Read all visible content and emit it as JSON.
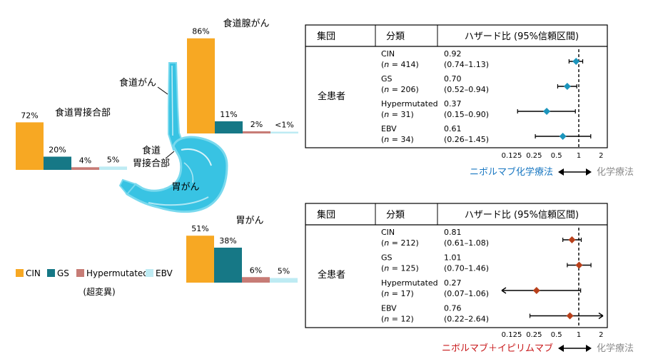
{
  "colors": {
    "CIN": "#F7A823",
    "GS": "#167886",
    "Hypermutated": "#C77C76",
    "EBV": "#BEEBF3",
    "stomach": "#38C3E3",
    "stomach_stroke": "#79D9EE",
    "marker_top": "#1C95BC",
    "marker_bottom": "#B8401B",
    "label_top": "#1A78C2",
    "label_bottom": "#C8191B",
    "chemo": "#8C8C8C"
  },
  "region_titles": {
    "eac": "食道腺がん",
    "esoph": "食道がん",
    "gej": "食道胃接合部",
    "gej_organ": [
      "食道",
      "胃接合部"
    ],
    "stomach_organ": "胃がん",
    "gastric": "胃がん"
  },
  "bar_groups": [
    {
      "id": "gej",
      "values": [
        72,
        20,
        4,
        5
      ],
      "labels": [
        "72%",
        "20%",
        "4%",
        "5%"
      ]
    },
    {
      "id": "eac",
      "values": [
        86,
        11,
        2,
        1
      ],
      "labels": [
        "86%",
        "11%",
        "2%",
        "<1%"
      ]
    },
    {
      "id": "gastric",
      "values": [
        51,
        38,
        6,
        5
      ],
      "labels": [
        "51%",
        "38%",
        "6%",
        "5%"
      ]
    }
  ],
  "legend": {
    "items": [
      {
        "key": "CIN",
        "label": "CIN"
      },
      {
        "key": "GS",
        "label": "GS"
      },
      {
        "key": "Hypermutated",
        "label": "Hypermutated"
      },
      {
        "key": "EBV",
        "label": "EBV"
      }
    ],
    "note": "(超変異)"
  },
  "forest_plots": [
    {
      "headers": [
        "集団",
        "分類",
        "ハザード比 (95%信頼区間)"
      ],
      "population": "全患者",
      "marker": "marker_top",
      "rows": [
        {
          "cls": "CIN",
          "n": "= 414)",
          "hr": "0.92",
          "ci": "(0.74–1.13)",
          "est": 0.92,
          "lo": 0.74,
          "hi": 1.13,
          "arrow_left": false,
          "arrow_right": false
        },
        {
          "cls": "GS",
          "n": "= 206)",
          "hr": "0.70",
          "ci": "(0.52–0.94)",
          "est": 0.7,
          "lo": 0.52,
          "hi": 0.94,
          "arrow_left": false,
          "arrow_right": false
        },
        {
          "cls": "Hypermutated",
          "n": "= 31)",
          "hr": "0.37",
          "ci": "(0.15–0.90)",
          "est": 0.37,
          "lo": 0.15,
          "hi": 0.9,
          "arrow_left": false,
          "arrow_right": false
        },
        {
          "cls": "EBV",
          "n": "= 34)",
          "hr": "0.61",
          "ci": "(0.26–1.45)",
          "est": 0.61,
          "lo": 0.26,
          "hi": 1.45,
          "arrow_left": false,
          "arrow_right": false
        }
      ],
      "ticks": [
        0.125,
        0.25,
        0.5,
        1,
        2
      ],
      "tick_labels": [
        "0.125",
        "0.25",
        "0.5",
        "1",
        "2"
      ],
      "favors_left": "ニボルマブ化学療法",
      "favors_left_color": "label_top",
      "favors_right": "化学療法"
    },
    {
      "headers": [
        "集団",
        "分類",
        "ハザード比 (95%信頼区間)"
      ],
      "population": "全患者",
      "marker": "marker_bottom",
      "rows": [
        {
          "cls": "CIN",
          "n": "= 212)",
          "hr": "0.81",
          "ci": "(0.61–1.08)",
          "est": 0.81,
          "lo": 0.61,
          "hi": 1.08,
          "arrow_left": false,
          "arrow_right": false
        },
        {
          "cls": "GS",
          "n": "= 125)",
          "hr": "1.01",
          "ci": "(0.70–1.46)",
          "est": 1.01,
          "lo": 0.7,
          "hi": 1.46,
          "arrow_left": false,
          "arrow_right": false
        },
        {
          "cls": "Hypermutated",
          "n": "= 17)",
          "hr": "0.27",
          "ci": "(0.07–1.06)",
          "est": 0.27,
          "lo": 0.07,
          "hi": 1.06,
          "arrow_left": true,
          "arrow_right": false
        },
        {
          "cls": "EBV",
          "n": "= 12)",
          "hr": "0.76",
          "ci": "(0.22–2.64)",
          "est": 0.76,
          "lo": 0.22,
          "hi": 2.64,
          "arrow_left": false,
          "arrow_right": true
        }
      ],
      "ticks": [
        0.125,
        0.25,
        0.5,
        1,
        2
      ],
      "tick_labels": [
        "0.125",
        "0.25",
        "0.5",
        "1",
        "2"
      ],
      "favors_left": "ニボルマブ＋イピリムマブ",
      "favors_left_color": "label_bottom",
      "favors_right": "化学療法"
    }
  ]
}
